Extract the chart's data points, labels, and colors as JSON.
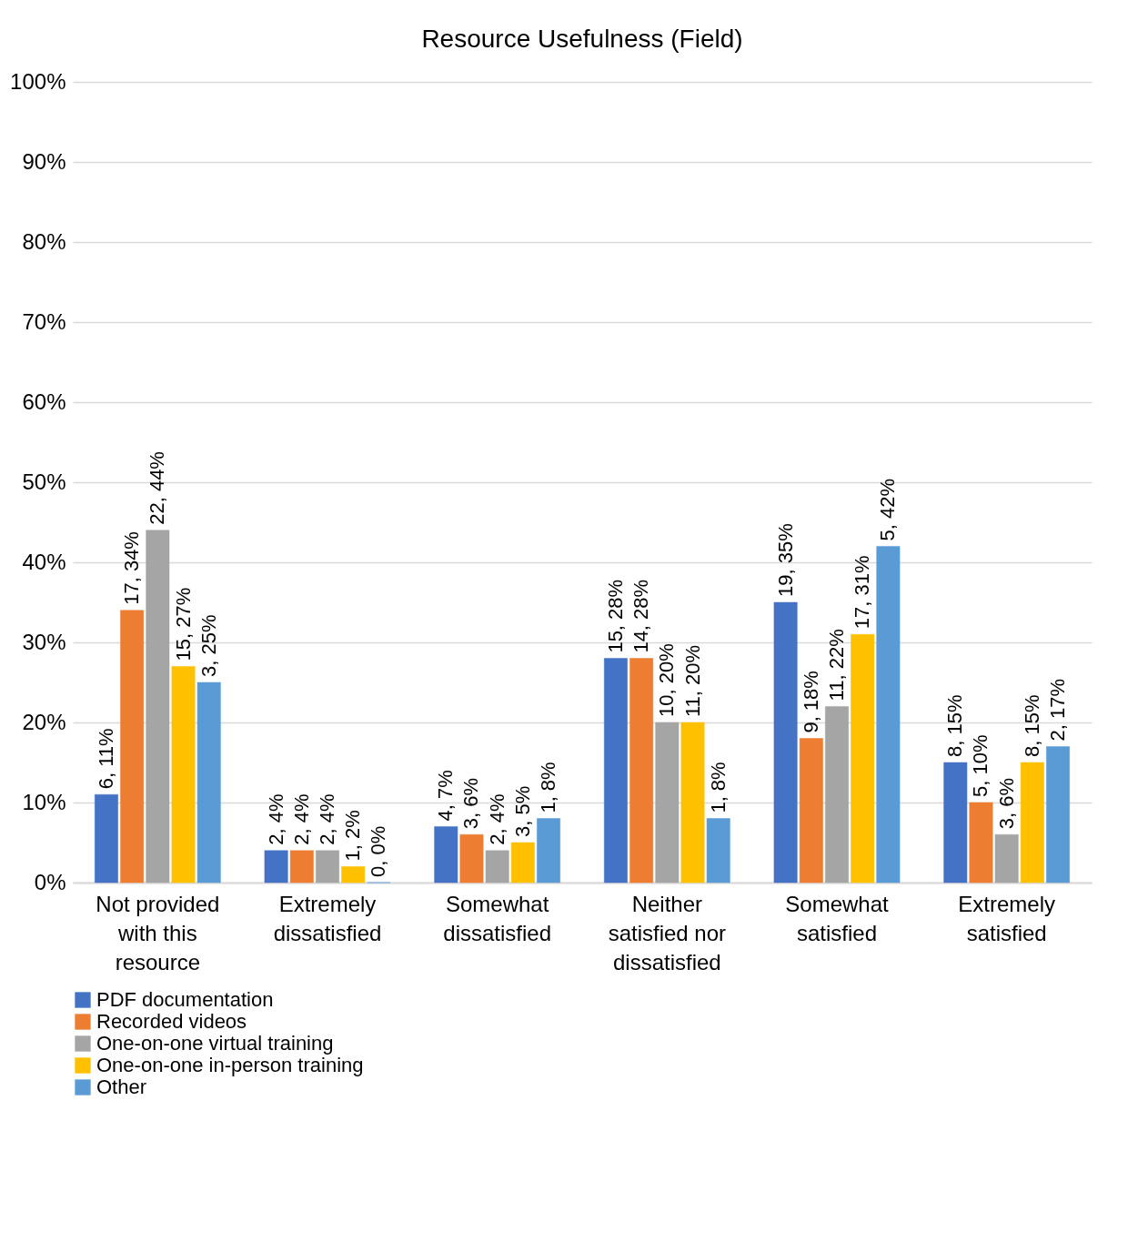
{
  "chart_data": {
    "type": "bar",
    "title": "Resource Usefulness (Field)",
    "categories": [
      "Not provided with this resource",
      "Extremely dissatisfied",
      "Somewhat dissatisfied",
      "Neither satisfied nor dissatisfied",
      "Somewhat satisfied",
      "Extremely satisfied"
    ],
    "series": [
      {
        "name": "PDF documentation",
        "color": "#4472c4",
        "values": [
          11,
          4,
          7,
          28,
          35,
          15
        ],
        "value_labels": [
          "6, 11%",
          "2, 4%",
          "4, 7%",
          "15, 28%",
          "19, 35%",
          "8, 15%"
        ]
      },
      {
        "name": "Recorded videos",
        "color": "#ed7d31",
        "values": [
          34,
          4,
          6,
          28,
          18,
          10
        ],
        "value_labels": [
          "17, 34%",
          "2, 4%",
          "3, 6%",
          "14, 28%",
          "9, 18%",
          "5, 10%"
        ]
      },
      {
        "name": "One-on-one virtual training",
        "color": "#a5a5a5",
        "values": [
          44,
          4,
          4,
          20,
          22,
          6
        ],
        "value_labels": [
          "22, 44%",
          "2, 4%",
          "2, 4%",
          "10, 20%",
          "11, 22%",
          "3, 6%"
        ]
      },
      {
        "name": "One-on-one in-person training",
        "color": "#ffc000",
        "values": [
          27,
          2,
          5,
          20,
          31,
          15
        ],
        "value_labels": [
          "15, 27%",
          "1, 2%",
          "3, 5%",
          "11, 20%",
          "17, 31%",
          "8, 15%"
        ]
      },
      {
        "name": "Other",
        "color": "#5b9bd5",
        "values": [
          25,
          0,
          8,
          8,
          42,
          17
        ],
        "value_labels": [
          "3, 25%",
          "0, 0%",
          "1, 8%",
          "1, 8%",
          "5, 42%",
          "2, 17%"
        ]
      }
    ],
    "ylim": [
      0,
      100
    ],
    "yticks": [
      {
        "value": 0,
        "label": "0%"
      },
      {
        "value": 10,
        "label": "10%"
      },
      {
        "value": 20,
        "label": "20%"
      },
      {
        "value": 30,
        "label": "30%"
      },
      {
        "value": 40,
        "label": "40%"
      },
      {
        "value": 50,
        "label": "50%"
      },
      {
        "value": 60,
        "label": "60%"
      },
      {
        "value": 70,
        "label": "70%"
      },
      {
        "value": 80,
        "label": "80%"
      },
      {
        "value": 90,
        "label": "90%"
      },
      {
        "value": 100,
        "label": "100%"
      }
    ],
    "grid": "y",
    "legend": "bottom"
  }
}
